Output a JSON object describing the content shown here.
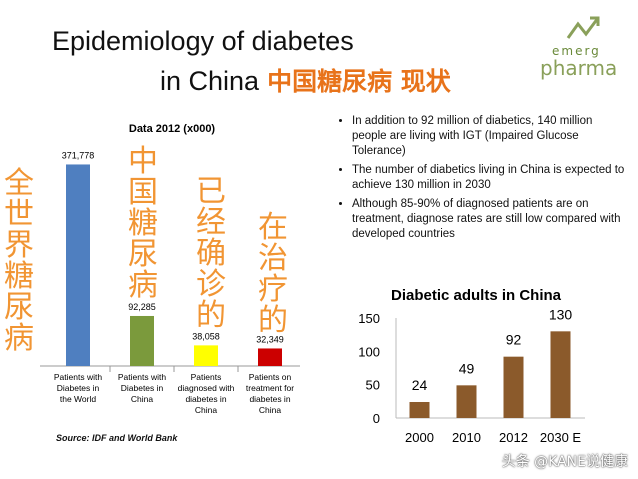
{
  "title": {
    "line1": "Epidemiology of diabetes",
    "line2": "in China",
    "line2_cn": "中国糖尿病 现状"
  },
  "logo": {
    "line1": "emerg",
    "line2": "pharma"
  },
  "colors": {
    "orange": "#f08a1e",
    "blue": "#4f7fc0",
    "green": "#7b9a3c",
    "yellow": "#ffff00",
    "red": "#cc0000",
    "brown": "#8b5a2b"
  },
  "left_annotations": [
    "全世界糖尿病",
    "中国糖尿病",
    "已经确诊的",
    "在治疗的"
  ],
  "bullets": [
    "In addition to 92 million of diabetics, 140 million people are living with IGT (Impaired Glucose Tolerance)",
    "The number of diabetics living in China is expected to achieve 130 million in 2030",
    "Although 85-90% of diagnosed patients are on treatment, diagnose rates are still low compared with developed countries"
  ],
  "source": "Source: IDF and World Bank",
  "watermark": "头条 @KANE说健康",
  "chart_data": [
    {
      "type": "bar",
      "title": "Data 2012 (x000)",
      "categories": [
        "Patients with Diabetes in the World",
        "Patients with Diabetes in China",
        "Patients diagnosed with diabetes in China",
        "Patients on treatment for diabetes in China"
      ],
      "values": [
        371778,
        92285,
        38058,
        32349
      ],
      "value_labels": [
        "371,778",
        "92,285",
        "38,058",
        "32,349"
      ],
      "colors": [
        "#4f7fc0",
        "#7b9a3c",
        "#ffff00",
        "#cc0000"
      ],
      "ylim": [
        0,
        380000
      ],
      "grid": false
    },
    {
      "type": "bar",
      "title": "Diabetic adults in China",
      "categories": [
        "2000",
        "2010",
        "2012",
        "2030 E"
      ],
      "values": [
        24,
        49,
        92,
        130
      ],
      "colors": [
        "#8b5a2b"
      ],
      "yticks": [
        0,
        50,
        100,
        150
      ],
      "ylim": [
        0,
        150
      ],
      "grid": false
    }
  ]
}
